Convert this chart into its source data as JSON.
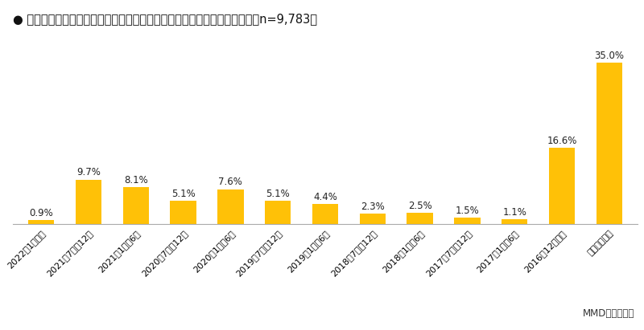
{
  "title": "● 最も利用しているスマートフォンの非接触決済サービスの利用開始時期（n=9,783）",
  "categories": [
    "2022年1月以降",
    "2021年7月～12月",
    "2021年1月～6月",
    "2020年7月～12月",
    "2020年1月～6月",
    "2019年7月～12月",
    "2019年1月～6月",
    "2018年7月～12月",
    "2018年1月～6月",
    "2017年7月～12月",
    "2017年1月～6月",
    "2016年12月以前",
    "覚えていない"
  ],
  "values": [
    0.9,
    9.7,
    8.1,
    5.1,
    7.6,
    5.1,
    4.4,
    2.3,
    2.5,
    1.5,
    1.1,
    16.6,
    35.0
  ],
  "bar_color": "#FFC107",
  "background_color": "#FFFFFF",
  "label_fontsize": 8.5,
  "title_fontsize": 10.5,
  "source_text": "MMD研究所調べ"
}
